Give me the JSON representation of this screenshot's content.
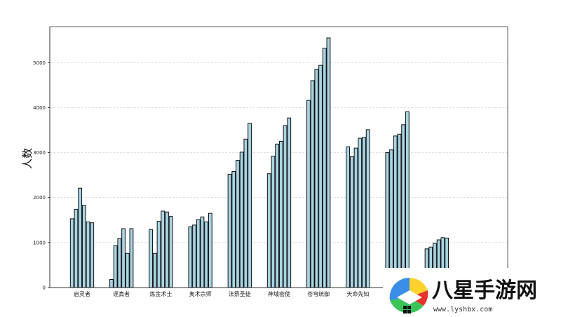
{
  "chart_data": {
    "type": "bar",
    "ylabel": "人数",
    "ylim": [
      0,
      5800
    ],
    "yticks": [
      0,
      1000,
      2000,
      3000,
      4000,
      5000
    ],
    "grid": "y-dashed",
    "categories": [
      "启灵者",
      "逐真者",
      "炼金术士",
      "奥术宗师",
      "法祭圣徒",
      "神域密使",
      "苍穹统御",
      "天命先知",
      "",
      ""
    ],
    "groups": [
      [
        1530,
        1740,
        2210,
        1830,
        1460,
        1440
      ],
      [
        180,
        930,
        1090,
        1310,
        760,
        1310
      ],
      [
        1290,
        760,
        1470,
        1700,
        1680,
        1580
      ],
      [
        1350,
        1390,
        1510,
        1570,
        1460,
        1650
      ],
      [
        2520,
        2580,
        2830,
        3010,
        3300,
        3650
      ],
      [
        2530,
        2920,
        3190,
        3250,
        3600,
        3770
      ],
      [
        4160,
        4600,
        4850,
        4940,
        5320,
        5550
      ],
      [
        3130,
        2910,
        3100,
        3320,
        3340,
        3510
      ],
      [
        3000,
        3060,
        3370,
        3410,
        3620,
        3910
      ],
      [
        860,
        900,
        980,
        1060,
        1110,
        1100
      ]
    ],
    "colors": {
      "bar_fill": "#a9d4e3",
      "bar_edge": "#111111",
      "grid": "#cfcfcf",
      "axis": "#333333"
    }
  },
  "watermark": {
    "brand": "八星手游网",
    "url": "www.lyshbx.com"
  }
}
